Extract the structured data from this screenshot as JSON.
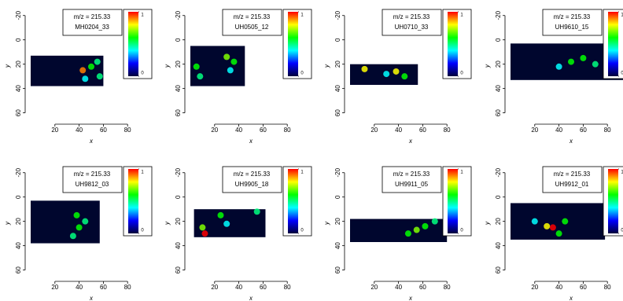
{
  "chart_data": [
    {
      "type": "image",
      "mz_label": "m/z = 215.33",
      "sample": "MH0204_33",
      "x_label": "x",
      "y_label": "y",
      "xlim": [
        0,
        100
      ],
      "ylim": [
        -25,
        68
      ],
      "xticks": [
        20,
        40,
        60,
        80
      ],
      "yticks": [
        -20,
        0,
        20,
        40,
        60
      ],
      "image_x": [
        0,
        60
      ],
      "image_y": [
        13,
        38
      ],
      "image_color": "#00062e",
      "colormap": [
        "#00003c",
        "#0000ff",
        "#00ffff",
        "#00ff00",
        "#ffff00",
        "#ff0000"
      ],
      "colorbar_ticks": [
        0,
        1
      ],
      "hotspots": [
        {
          "x": 43,
          "y": 25,
          "value": 0.9
        },
        {
          "x": 50,
          "y": 22,
          "value": 0.6
        },
        {
          "x": 55,
          "y": 18,
          "value": 0.5
        },
        {
          "x": 57,
          "y": 30,
          "value": 0.5
        },
        {
          "x": 45,
          "y": 32,
          "value": 0.4
        }
      ]
    },
    {
      "type": "image",
      "mz_label": "m/z = 215.33",
      "sample": "UH0505_12",
      "x_label": "x",
      "y_label": "y",
      "xlim": [
        0,
        100
      ],
      "ylim": [
        -25,
        68
      ],
      "xticks": [
        20,
        40,
        60,
        80
      ],
      "yticks": [
        -20,
        0,
        20,
        40,
        60
      ],
      "image_x": [
        0,
        45
      ],
      "image_y": [
        5,
        38
      ],
      "image_color": "#00062e",
      "colormap": [
        "#00003c",
        "#0000ff",
        "#00ffff",
        "#00ff00",
        "#ffff00",
        "#ff0000"
      ],
      "colorbar_ticks": [
        0,
        1
      ],
      "hotspots": [
        {
          "x": 5,
          "y": 22,
          "value": 0.6
        },
        {
          "x": 8,
          "y": 30,
          "value": 0.5
        },
        {
          "x": 30,
          "y": 14,
          "value": 0.7
        },
        {
          "x": 36,
          "y": 18,
          "value": 0.6
        },
        {
          "x": 33,
          "y": 25,
          "value": 0.4
        }
      ]
    },
    {
      "type": "image",
      "mz_label": "m/z = 215.33",
      "sample": "UH0710_33",
      "x_label": "x",
      "y_label": "y",
      "xlim": [
        0,
        100
      ],
      "ylim": [
        -25,
        68
      ],
      "xticks": [
        20,
        40,
        60,
        80
      ],
      "yticks": [
        -20,
        0,
        20,
        40,
        60
      ],
      "image_x": [
        0,
        56
      ],
      "image_y": [
        20,
        37
      ],
      "image_color": "#00062e",
      "colormap": [
        "#00003c",
        "#0000ff",
        "#00ffff",
        "#00ff00",
        "#ffff00",
        "#ff0000"
      ],
      "colorbar_ticks": [
        0,
        1
      ],
      "hotspots": [
        {
          "x": 12,
          "y": 24,
          "value": 0.8
        },
        {
          "x": 38,
          "y": 26,
          "value": 0.8
        },
        {
          "x": 45,
          "y": 30,
          "value": 0.6
        },
        {
          "x": 30,
          "y": 28,
          "value": 0.4
        }
      ]
    },
    {
      "type": "image",
      "mz_label": "m/z = 215.33",
      "sample": "UH9610_15",
      "x_label": "x",
      "y_label": "y",
      "xlim": [
        0,
        100
      ],
      "ylim": [
        -25,
        68
      ],
      "xticks": [
        20,
        40,
        60,
        80
      ],
      "yticks": [
        -20,
        0,
        20,
        40,
        60
      ],
      "image_x": [
        0,
        100
      ],
      "image_y": [
        3,
        33
      ],
      "image_color": "#00062e",
      "colormap": [
        "#00003c",
        "#0000ff",
        "#00ffff",
        "#00ff00",
        "#ffff00",
        "#ff0000"
      ],
      "colorbar_ticks": [
        0,
        1
      ],
      "hotspots": [
        {
          "x": 50,
          "y": 18,
          "value": 0.6
        },
        {
          "x": 60,
          "y": 15,
          "value": 0.6
        },
        {
          "x": 70,
          "y": 20,
          "value": 0.5
        },
        {
          "x": 80,
          "y": 15,
          "value": 0.5
        },
        {
          "x": 40,
          "y": 22,
          "value": 0.4
        }
      ]
    },
    {
      "type": "image",
      "mz_label": "m/z = 215.33",
      "sample": "UH9812_03",
      "x_label": "x",
      "y_label": "y",
      "xlim": [
        0,
        100
      ],
      "ylim": [
        -25,
        68
      ],
      "xticks": [
        20,
        40,
        60,
        80
      ],
      "yticks": [
        -20,
        0,
        20,
        40,
        60
      ],
      "image_x": [
        0,
        57
      ],
      "image_y": [
        3,
        38
      ],
      "image_color": "#00062e",
      "colormap": [
        "#00003c",
        "#0000ff",
        "#00ffff",
        "#00ff00",
        "#ffff00",
        "#ff0000"
      ],
      "colorbar_ticks": [
        0,
        1
      ],
      "hotspots": [
        {
          "x": 38,
          "y": 15,
          "value": 0.6
        },
        {
          "x": 40,
          "y": 25,
          "value": 0.6
        },
        {
          "x": 35,
          "y": 32,
          "value": 0.5
        },
        {
          "x": 45,
          "y": 20,
          "value": 0.5
        }
      ]
    },
    {
      "type": "image",
      "mz_label": "m/z = 215.33",
      "sample": "UH9905_18",
      "x_label": "x",
      "y_label": "y",
      "xlim": [
        0,
        100
      ],
      "ylim": [
        -25,
        68
      ],
      "xticks": [
        20,
        40,
        60,
        80
      ],
      "yticks": [
        -20,
        0,
        20,
        40,
        60
      ],
      "image_x": [
        3,
        62
      ],
      "image_y": [
        10,
        33
      ],
      "image_color": "#00062e",
      "colormap": [
        "#00003c",
        "#0000ff",
        "#00ffff",
        "#00ff00",
        "#ffff00",
        "#ff0000"
      ],
      "colorbar_ticks": [
        0,
        1
      ],
      "hotspots": [
        {
          "x": 10,
          "y": 25,
          "value": 0.7
        },
        {
          "x": 12,
          "y": 30,
          "value": 1
        },
        {
          "x": 25,
          "y": 15,
          "value": 0.6
        },
        {
          "x": 55,
          "y": 12,
          "value": 0.5
        },
        {
          "x": 30,
          "y": 22,
          "value": 0.4
        }
      ]
    },
    {
      "type": "image",
      "mz_label": "m/z = 215.33",
      "sample": "UH9911_05",
      "x_label": "x",
      "y_label": "y",
      "xlim": [
        0,
        100
      ],
      "ylim": [
        -25,
        68
      ],
      "xticks": [
        20,
        40,
        60,
        80
      ],
      "yticks": [
        -20,
        0,
        20,
        40,
        60
      ],
      "image_x": [
        0,
        80
      ],
      "image_y": [
        18,
        37
      ],
      "image_color": "#00062e",
      "colormap": [
        "#00003c",
        "#0000ff",
        "#00ffff",
        "#00ff00",
        "#ffff00",
        "#ff0000"
      ],
      "colorbar_ticks": [
        0,
        1
      ],
      "hotspots": [
        {
          "x": 48,
          "y": 30,
          "value": 0.6
        },
        {
          "x": 55,
          "y": 27,
          "value": 0.7
        },
        {
          "x": 62,
          "y": 24,
          "value": 0.6
        },
        {
          "x": 70,
          "y": 20,
          "value": 0.5
        }
      ]
    },
    {
      "type": "image",
      "mz_label": "m/z = 215.33",
      "sample": "UH9912_01",
      "x_label": "x",
      "y_label": "y",
      "xlim": [
        0,
        100
      ],
      "ylim": [
        -25,
        68
      ],
      "xticks": [
        20,
        40,
        60,
        80
      ],
      "yticks": [
        -20,
        0,
        20,
        40,
        60
      ],
      "image_x": [
        0,
        78
      ],
      "image_y": [
        5,
        35
      ],
      "image_color": "#00062e",
      "colormap": [
        "#00003c",
        "#0000ff",
        "#00ffff",
        "#00ff00",
        "#ffff00",
        "#ff0000"
      ],
      "colorbar_ticks": [
        0,
        1
      ],
      "hotspots": [
        {
          "x": 35,
          "y": 25,
          "value": 1
        },
        {
          "x": 30,
          "y": 24,
          "value": 0.8
        },
        {
          "x": 45,
          "y": 20,
          "value": 0.6
        },
        {
          "x": 40,
          "y": 30,
          "value": 0.6
        },
        {
          "x": 20,
          "y": 20,
          "value": 0.4
        }
      ]
    }
  ]
}
